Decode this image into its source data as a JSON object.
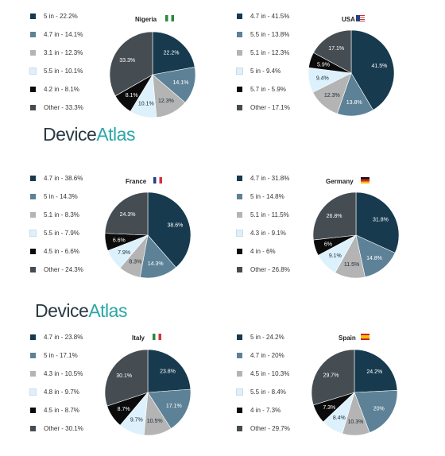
{
  "brand": {
    "device": "Device",
    "atlas": "Atlas"
  },
  "colors": {
    "darknavy": "#173a4e",
    "steelblue": "#5d8297",
    "gray": "#b4b4b4",
    "lightblue": "#dcf1fb",
    "black": "#0b0b0b",
    "darkslate": "#454c52"
  },
  "chart_data": [
    {
      "type": "pie",
      "title": "Nigeria",
      "flag": "nigeria-flag-icon",
      "legend": [
        "5 in - 22.2%",
        "4.7 in - 14.1%",
        "3.1 in - 12.3%",
        "5.5 in - 10.1%",
        "4.2 in - 8.1%",
        "Other - 33.3%"
      ],
      "categories": [
        "5 in",
        "4.7 in",
        "3.1 in",
        "5.5 in",
        "4.2 in",
        "Other"
      ],
      "values": [
        22.2,
        14.1,
        12.3,
        10.1,
        8.1,
        33.3
      ],
      "labels": [
        "22.2%",
        "14.1%",
        "12.3%",
        "10.1%",
        "8.1%",
        "33.3%"
      ],
      "colors": [
        "#173a4e",
        "#5d8297",
        "#b4b4b4",
        "#dcf1fb",
        "#0b0b0b",
        "#454c52"
      ]
    },
    {
      "type": "pie",
      "title": "USA",
      "flag": "usa-flag-icon",
      "legend": [
        "4.7 in - 41.5%",
        "5.5 in - 13.8%",
        "5.1 in - 12.3%",
        "5 in - 9.4%",
        "5.7 in - 5.9%",
        "Other - 17.1%"
      ],
      "categories": [
        "4.7 in",
        "5.5 in",
        "5.1 in",
        "5 in",
        "5.7 in",
        "Other"
      ],
      "values": [
        41.5,
        13.8,
        12.3,
        9.4,
        5.9,
        17.1
      ],
      "labels": [
        "41.5%",
        "13.8%",
        "12.3%",
        "9.4%",
        "5.9%",
        "17.1%"
      ],
      "colors": [
        "#173a4e",
        "#5d8297",
        "#b4b4b4",
        "#dcf1fb",
        "#0b0b0b",
        "#454c52"
      ]
    },
    {
      "type": "pie",
      "title": "France",
      "flag": "france-flag-icon",
      "legend": [
        "4.7 in - 38.6%",
        "5 in - 14.3%",
        "5.1 in - 8.3%",
        "5.5 in - 7.9%",
        "4.5 in - 6.6%",
        "Other - 24.3%"
      ],
      "categories": [
        "4.7 in",
        "5 in",
        "5.1 in",
        "5.5 in",
        "4.5 in",
        "Other"
      ],
      "values": [
        38.6,
        14.3,
        8.3,
        7.9,
        6.6,
        24.3
      ],
      "labels": [
        "38.6%",
        "14.3%",
        "8.3%",
        "7.9%",
        "6.6%",
        "24.3%"
      ],
      "colors": [
        "#173a4e",
        "#5d8297",
        "#b4b4b4",
        "#dcf1fb",
        "#0b0b0b",
        "#454c52"
      ]
    },
    {
      "type": "pie",
      "title": "Germany",
      "flag": "germany-flag-icon",
      "legend": [
        "4.7 in - 31.8%",
        "5 in - 14.8%",
        "5.1 in - 11.5%",
        "4.3 in - 9.1%",
        "4 in - 6%",
        "Other - 26.8%"
      ],
      "categories": [
        "4.7 in",
        "5 in",
        "5.1 in",
        "4.3 in",
        "4 in",
        "Other"
      ],
      "values": [
        31.8,
        14.8,
        11.5,
        9.1,
        6,
        26.8
      ],
      "labels": [
        "31.8%",
        "14.8%",
        "11.5%",
        "9.1%",
        "6%",
        "26.8%"
      ],
      "colors": [
        "#173a4e",
        "#5d8297",
        "#b4b4b4",
        "#dcf1fb",
        "#0b0b0b",
        "#454c52"
      ]
    },
    {
      "type": "pie",
      "title": "Italy",
      "flag": "italy-flag-icon",
      "legend": [
        "4.7 in - 23.8%",
        "5 in - 17.1%",
        "4.3 in - 10.5%",
        "4.8 in - 9.7%",
        "4.5 in - 8.7%",
        "Other - 30.1%"
      ],
      "categories": [
        "4.7 in",
        "5 in",
        "4.3 in",
        "4.8 in",
        "4.5 in",
        "Other"
      ],
      "values": [
        23.8,
        17.1,
        10.5,
        9.7,
        8.7,
        30.1
      ],
      "labels": [
        "23.8%",
        "17.1%",
        "10.5%",
        "9.7%",
        "8.7%",
        "30.1%"
      ],
      "colors": [
        "#173a4e",
        "#5d8297",
        "#b4b4b4",
        "#dcf1fb",
        "#0b0b0b",
        "#454c52"
      ]
    },
    {
      "type": "pie",
      "title": "Spain",
      "flag": "spain-flag-icon",
      "legend": [
        "5 in - 24.2%",
        "4.7 in - 20%",
        "4.5 in - 10.3%",
        "5.5 in - 8.4%",
        "4 in - 7.3%",
        "Other - 29.7%"
      ],
      "categories": [
        "5 in",
        "4.7 in",
        "4.5 in",
        "5.5 in",
        "4 in",
        "Other"
      ],
      "values": [
        24.2,
        20,
        10.3,
        8.4,
        7.3,
        29.7
      ],
      "labels": [
        "24.2%",
        "20%",
        "10.3%",
        "8.4%",
        "7.3%",
        "29.7%"
      ],
      "colors": [
        "#173a4e",
        "#5d8297",
        "#b4b4b4",
        "#dcf1fb",
        "#0b0b0b",
        "#454c52"
      ]
    }
  ]
}
